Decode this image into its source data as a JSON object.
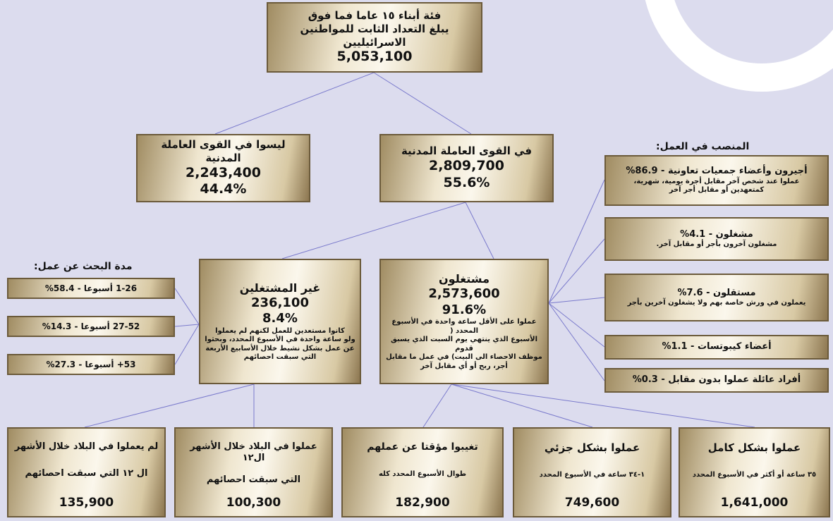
{
  "headings": [
    "مدة البحث عن عمل:",
    "المنصب في العمل:"
  ],
  "nodes": [
    {
      "lines": [
        "فئة أبناء ١٥ عاما فما فوق",
        "يبلغ التعداد الثابت للمواطنين الاسرائيليين",
        "5,053,100"
      ]
    },
    {
      "lines": [
        "ليسوا في القوى العاملة المدنية",
        "2,243,400",
        "44.4%"
      ]
    },
    {
      "lines": [
        "في القوى العاملة المدنية",
        "2,809,700",
        "55.6%"
      ]
    },
    {
      "lines": [
        "غير المشتغلين",
        "236,100",
        "8.4%",
        "كانوا مستعدين للعمل لكنهم لم يعملوا",
        "ولو ساعة واحدة في الأسبوع المحدد، وبحثوا",
        "عن عمل بشكل نشيط خلال الأسابيع الأربعة",
        "التي سبقت احصائهم"
      ]
    },
    {
      "lines": [
        "مشتغلون",
        "2,573,600",
        "91.6%",
        "عملوا على الأقل ساعة واحدة في الأسبوع المحدد (",
        "الأسبوع الذي ينتهي يوم السبت الذي يسبق قدوم",
        "موظف الاحصاء الى البيت) في عمل ما مقابل",
        "أجر، ربح أو أي مقابل آخر"
      ]
    },
    {
      "lines": [
        "1-26 أسبوعا - 58.4%"
      ]
    },
    {
      "lines": [
        "27-52 أسبوعا - 14.3%"
      ]
    },
    {
      "lines": [
        "53+ أسبوعا - 27.3%"
      ]
    },
    {
      "lines": [
        "أجيرون وأعضاء جمعيات تعاونية - 86.9%",
        "عملوا عند شخص آخر مقابل أجرة يومية، شهرية،",
        "كمتعهدين أو مقابل أجر آخر"
      ]
    },
    {
      "lines": [
        "مشغلون - 4.1%",
        "مشغلون آخرون بأجر أو مقابل آخر."
      ]
    },
    {
      "lines": [
        "مستقلون - 7.6%",
        "يعملون في ورش خاصة بهم ولا يشغلون آخرين بأجر"
      ]
    },
    {
      "lines": [
        "أعضاء كيبوتسات - 1.1%"
      ]
    },
    {
      "lines": [
        "أفراد عائلة عملوا بدون مقابل - 0.3%"
      ]
    },
    {
      "lines": [
        "لم يعملوا في البلاد خلال الأشهر",
        "ال ١٢ التي سبقت احصائهم",
        "135,900"
      ]
    },
    {
      "lines": [
        "عملوا في البلاد خلال الأشهر ال١٢",
        "التي سبقت احصائهم",
        "100,300"
      ]
    },
    {
      "lines": [
        "تغيبوا مؤقتا عن عملهم",
        "طوال الأسبوع المحدد كله",
        "182,900"
      ]
    },
    {
      "lines": [
        "عملوا بشكل جزئي",
        "١-٣٤ ساعة في الأسبوع المحدد",
        "749,600"
      ]
    },
    {
      "lines": [
        "عملوا بشكل كامل",
        "٣٥ ساعة أو أكثر في الأسبوع المحدد",
        "1,641,000"
      ]
    }
  ]
}
